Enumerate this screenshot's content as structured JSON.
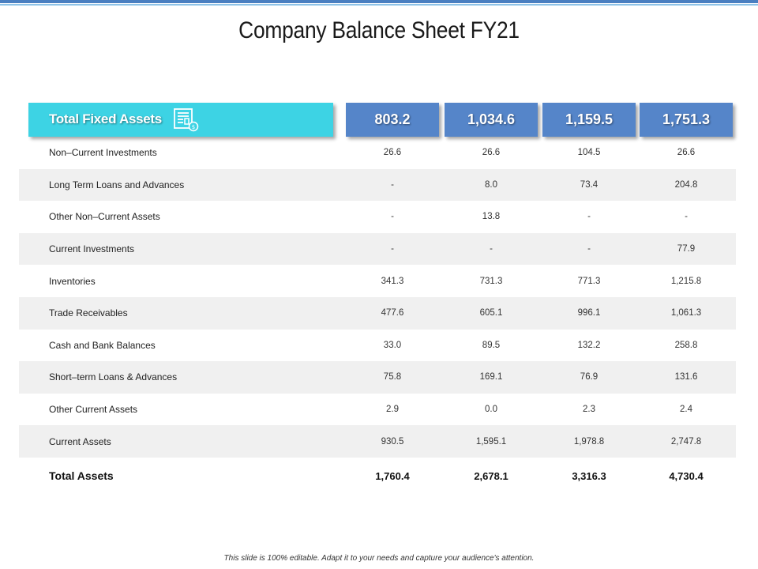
{
  "title": "Company Balance Sheet FY21",
  "header": {
    "label": "Total Fixed Assets",
    "icon": "document-money-icon",
    "values": [
      "803.2",
      "1,034.6",
      "1,159.5",
      "1,751.3"
    ]
  },
  "rows": [
    {
      "label": "Non–Current Investments",
      "values": [
        "26.6",
        "26.6",
        "104.5",
        "26.6"
      ]
    },
    {
      "label": "Long Term Loans and Advances",
      "values": [
        "-",
        "8.0",
        "73.4",
        "204.8"
      ]
    },
    {
      "label": "Other Non–Current Assets",
      "values": [
        "-",
        "13.8",
        "-",
        "-"
      ]
    },
    {
      "label": "Current Investments",
      "values": [
        "-",
        "-",
        "-",
        "77.9"
      ]
    },
    {
      "label": "Inventories",
      "values": [
        "341.3",
        "731.3",
        "771.3",
        "1,215.8"
      ]
    },
    {
      "label": "Trade Receivables",
      "values": [
        "477.6",
        "605.1",
        "996.1",
        "1,061.3"
      ]
    },
    {
      "label": "Cash and Bank Balances",
      "values": [
        "33.0",
        "89.5",
        "132.2",
        "258.8"
      ]
    },
    {
      "label": "Short–term Loans & Advances",
      "values": [
        "75.8",
        "169.1",
        "76.9",
        "131.6"
      ]
    },
    {
      "label": "Other Current Assets",
      "values": [
        "2.9",
        "0.0",
        "2.3",
        "2.4"
      ]
    },
    {
      "label": "Current Assets",
      "values": [
        "930.5",
        "1,595.1",
        "1,978.8",
        "2,747.8"
      ]
    }
  ],
  "total": {
    "label": "Total Assets",
    "values": [
      "1,760.4",
      "2,678.1",
      "3,316.3",
      "4,730.4"
    ]
  },
  "footer": "This slide is 100% editable. Adapt it to your needs and capture your audience's attention.",
  "colors": {
    "header_cyan": "#3dd3e4",
    "value_blue": "#5585c9",
    "row_shade": "#f0f0f0",
    "top_bar": "#4a7fc1"
  }
}
